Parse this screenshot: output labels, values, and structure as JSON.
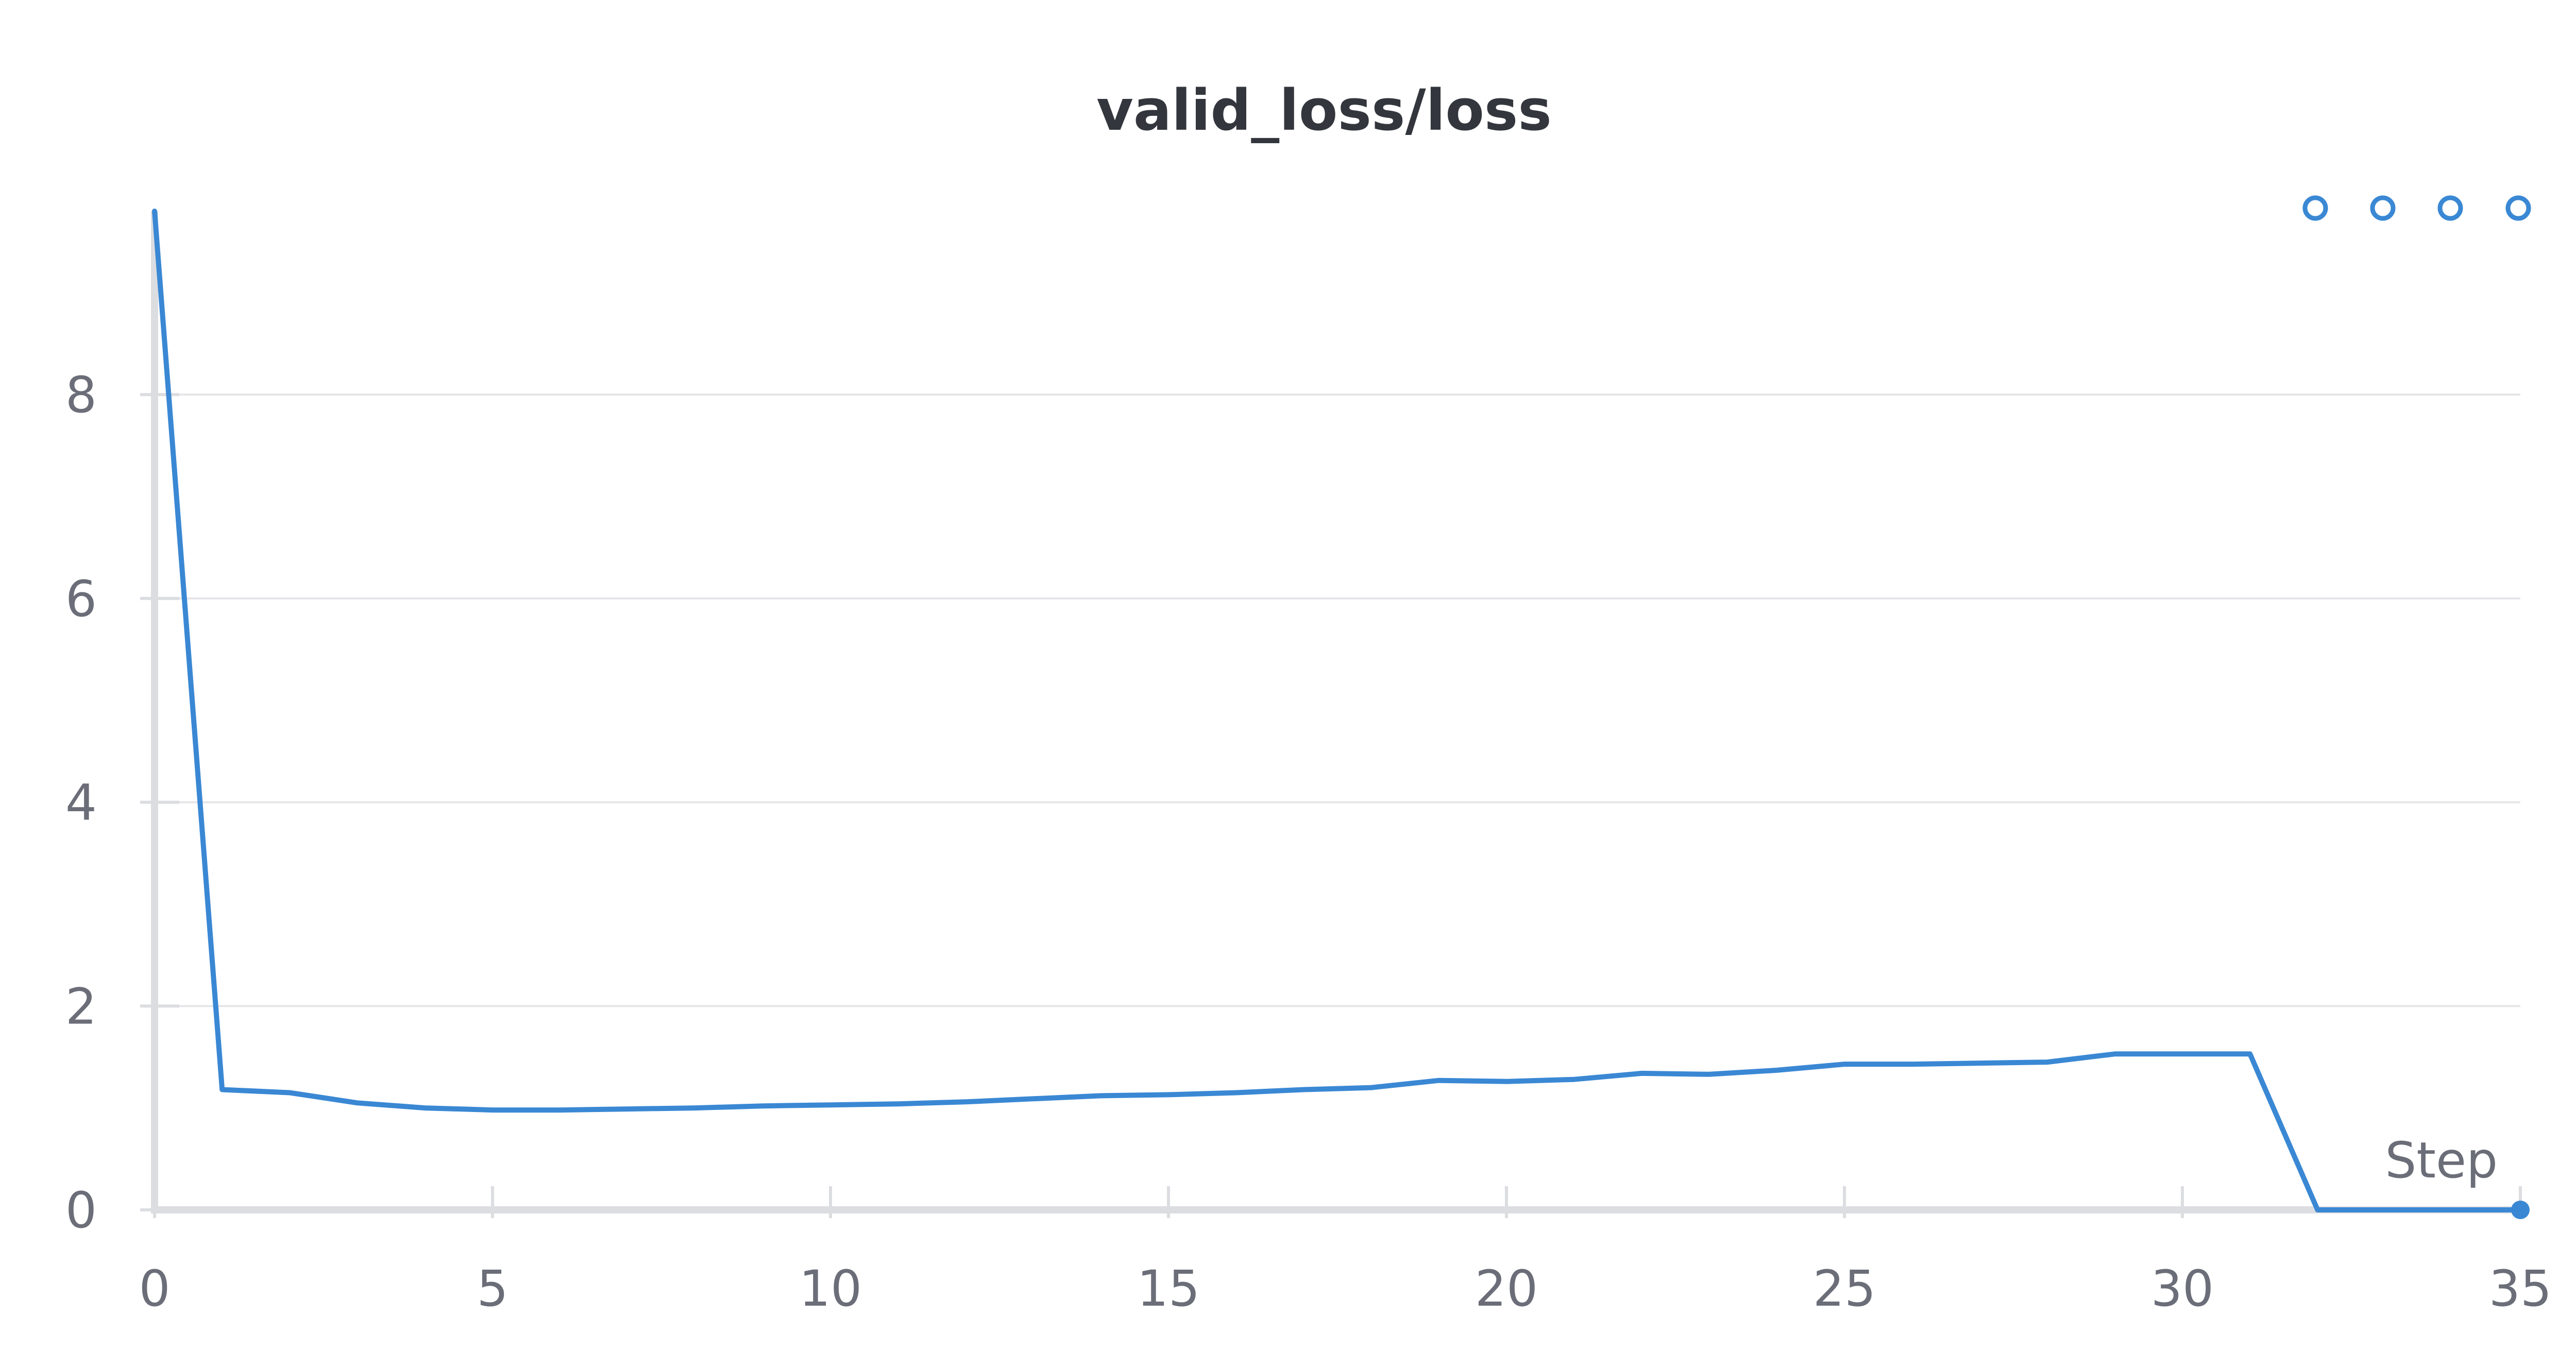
{
  "chart_data": {
    "type": "line",
    "title": "valid_loss/loss",
    "xlabel": "Step",
    "ylabel": "",
    "xlim": [
      0,
      35
    ],
    "ylim": [
      0,
      9.8
    ],
    "x_ticks": [
      0,
      5,
      10,
      15,
      20,
      25,
      30,
      35
    ],
    "y_ticks": [
      0,
      2,
      4,
      6,
      8
    ],
    "grid": true,
    "legend": "none",
    "series": [
      {
        "color": "#3a88d4",
        "x": [
          0,
          1,
          2,
          3,
          4,
          5,
          6,
          7,
          8,
          9,
          10,
          11,
          12,
          13,
          14,
          15,
          16,
          17,
          18,
          19,
          20,
          21,
          22,
          23,
          24,
          25,
          26,
          27,
          28,
          29,
          30,
          31,
          32,
          33,
          34,
          35
        ],
        "y": [
          9.8,
          1.18,
          1.15,
          1.05,
          1.0,
          0.98,
          0.98,
          0.99,
          1.0,
          1.02,
          1.03,
          1.04,
          1.06,
          1.09,
          1.12,
          1.13,
          1.15,
          1.18,
          1.2,
          1.27,
          1.26,
          1.28,
          1.34,
          1.33,
          1.37,
          1.43,
          1.43,
          1.44,
          1.45,
          1.53,
          1.53,
          1.53,
          0.0,
          0.0,
          0.0,
          0.0
        ]
      }
    ]
  }
}
